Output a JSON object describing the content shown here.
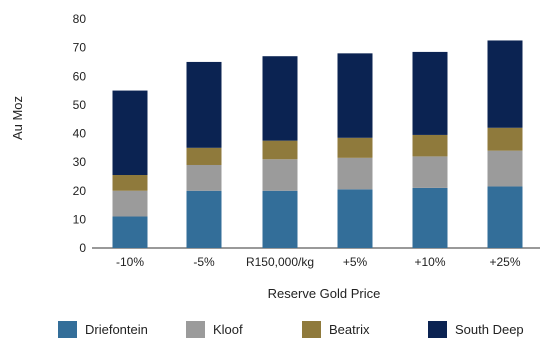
{
  "chart_data": {
    "type": "bar",
    "stacked": true,
    "title": "",
    "xlabel": "Reserve Gold Price",
    "ylabel": "Au Moz",
    "ylim": [
      0,
      80
    ],
    "yticks": [
      0,
      10,
      20,
      30,
      40,
      50,
      60,
      70,
      80
    ],
    "grid": false,
    "legend": "bottom",
    "categories": [
      "-10%",
      "-5%",
      "R150,000/kg",
      "+5%",
      "+10%",
      "+25%"
    ],
    "series": [
      {
        "name": "Driefontein",
        "color": "#336e99",
        "values": [
          11,
          20,
          20,
          20.5,
          21,
          21.5
        ]
      },
      {
        "name": "Kloof",
        "color": "#9b9b9b",
        "values": [
          9,
          9,
          11,
          11,
          11,
          12.5
        ]
      },
      {
        "name": "Beatrix",
        "color": "#8f7a3c",
        "values": [
          5.5,
          6,
          6.5,
          7,
          7.5,
          8
        ]
      },
      {
        "name": "South Deep",
        "color": "#0b2352",
        "values": [
          29.5,
          30,
          29.5,
          29.5,
          29,
          30.5
        ]
      }
    ]
  }
}
